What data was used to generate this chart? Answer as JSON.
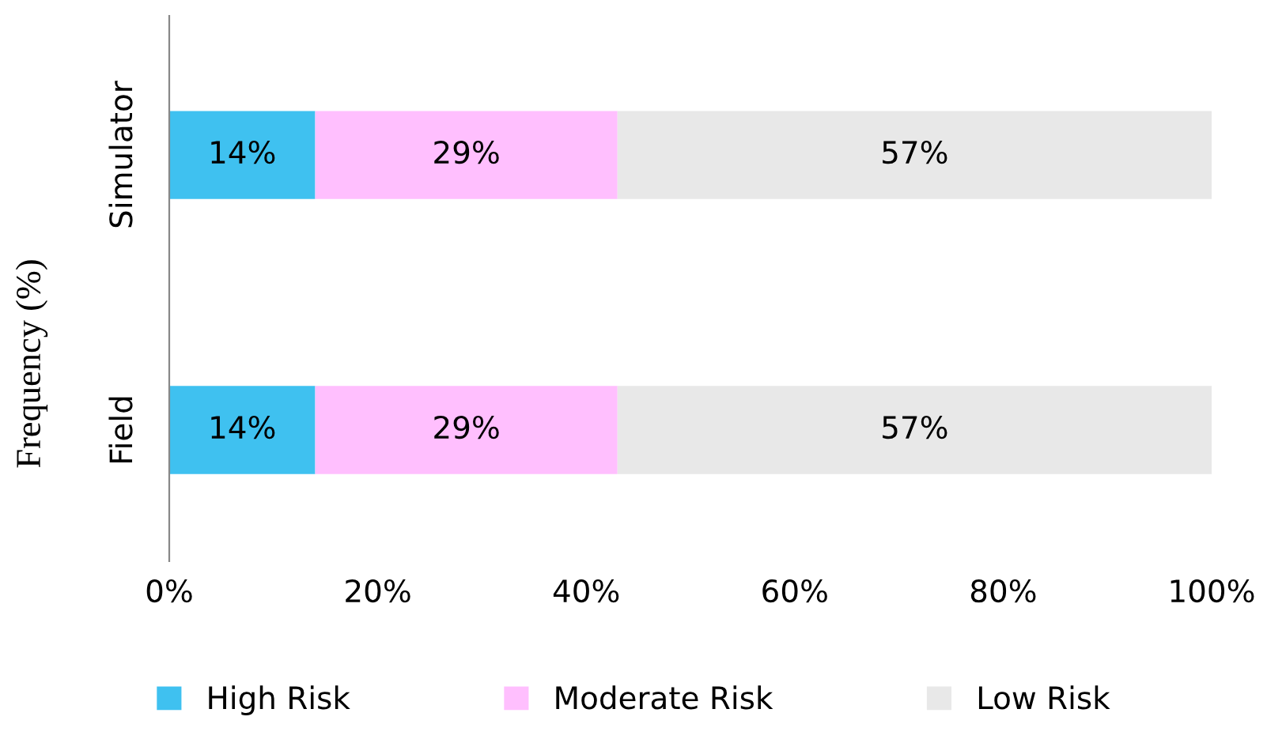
{
  "chart_data": {
    "type": "bar",
    "orientation": "horizontal",
    "stacked": true,
    "ylabel": "Frequency (%)",
    "categories": [
      "Simulator",
      "Field"
    ],
    "series": [
      {
        "name": "High Risk",
        "color": "#3fc1f0",
        "values": [
          14,
          14
        ],
        "value_labels": [
          "14%",
          "14%"
        ]
      },
      {
        "name": "Moderate Risk",
        "color": "#ffbffe",
        "values": [
          29,
          29
        ],
        "value_labels": [
          "29%",
          "29%"
        ]
      },
      {
        "name": "Low Risk",
        "color": "#e8e8e8",
        "values": [
          57,
          57
        ],
        "value_labels": [
          "57%",
          "57%"
        ]
      }
    ],
    "xlim": [
      0,
      100
    ],
    "xticks": [
      {
        "value": 0,
        "label": "0%"
      },
      {
        "value": 20,
        "label": "20%"
      },
      {
        "value": 40,
        "label": "40%"
      },
      {
        "value": 60,
        "label": "60%"
      },
      {
        "value": 80,
        "label": "80%"
      },
      {
        "value": 100,
        "label": "100%"
      }
    ],
    "grid": false,
    "legend": "bottom"
  }
}
